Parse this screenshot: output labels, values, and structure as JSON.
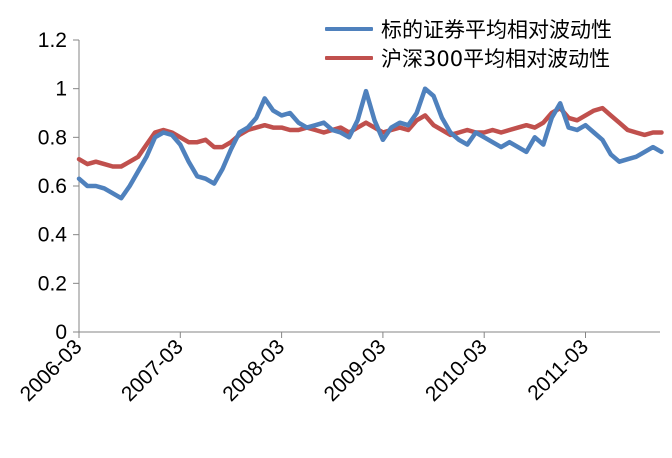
{
  "chart_data": {
    "type": "line",
    "title": "",
    "xlabel": "",
    "ylabel": "",
    "ylim": [
      0,
      1.2
    ],
    "yticks": [
      "0",
      "0.2",
      "0.4",
      "0.6",
      "0.8",
      "1",
      "1.2"
    ],
    "xlim": [
      "2006-03",
      "2011-12"
    ],
    "xticks": [
      "2006-03",
      "2007-03",
      "2008-03",
      "2009-03",
      "2010-03",
      "2011-03"
    ],
    "grid": false,
    "legend_position": "top-right",
    "series": [
      {
        "name": "标的证券平均相对波动性",
        "color": "#4F81BD",
        "points": [
          [
            "2006-03",
            0.63
          ],
          [
            "2006-04",
            0.6
          ],
          [
            "2006-05",
            0.6
          ],
          [
            "2006-06",
            0.59
          ],
          [
            "2006-07",
            0.57
          ],
          [
            "2006-08",
            0.55
          ],
          [
            "2006-09",
            0.6
          ],
          [
            "2006-10",
            0.66
          ],
          [
            "2006-11",
            0.72
          ],
          [
            "2006-12",
            0.8
          ],
          [
            "2007-01",
            0.82
          ],
          [
            "2007-02",
            0.81
          ],
          [
            "2007-03",
            0.77
          ],
          [
            "2007-04",
            0.7
          ],
          [
            "2007-05",
            0.64
          ],
          [
            "2007-06",
            0.63
          ],
          [
            "2007-07",
            0.61
          ],
          [
            "2007-08",
            0.67
          ],
          [
            "2007-09",
            0.75
          ],
          [
            "2007-10",
            0.82
          ],
          [
            "2007-11",
            0.84
          ],
          [
            "2007-12",
            0.88
          ],
          [
            "2008-01",
            0.96
          ],
          [
            "2008-02",
            0.91
          ],
          [
            "2008-03",
            0.89
          ],
          [
            "2008-04",
            0.9
          ],
          [
            "2008-05",
            0.86
          ],
          [
            "2008-06",
            0.84
          ],
          [
            "2008-07",
            0.85
          ],
          [
            "2008-08",
            0.86
          ],
          [
            "2008-09",
            0.83
          ],
          [
            "2008-10",
            0.82
          ],
          [
            "2008-11",
            0.8
          ],
          [
            "2008-12",
            0.87
          ],
          [
            "2009-01",
            0.99
          ],
          [
            "2009-02",
            0.87
          ],
          [
            "2009-03",
            0.79
          ],
          [
            "2009-04",
            0.84
          ],
          [
            "2009-05",
            0.86
          ],
          [
            "2009-06",
            0.85
          ],
          [
            "2009-07",
            0.9
          ],
          [
            "2009-08",
            1.0
          ],
          [
            "2009-09",
            0.97
          ],
          [
            "2009-10",
            0.88
          ],
          [
            "2009-11",
            0.82
          ],
          [
            "2009-12",
            0.79
          ],
          [
            "2010-01",
            0.77
          ],
          [
            "2010-02",
            0.82
          ],
          [
            "2010-03",
            0.8
          ],
          [
            "2010-04",
            0.78
          ],
          [
            "2010-05",
            0.76
          ],
          [
            "2010-06",
            0.78
          ],
          [
            "2010-07",
            0.76
          ],
          [
            "2010-08",
            0.74
          ],
          [
            "2010-09",
            0.8
          ],
          [
            "2010-10",
            0.77
          ],
          [
            "2010-11",
            0.88
          ],
          [
            "2010-12",
            0.94
          ],
          [
            "2011-01",
            0.84
          ],
          [
            "2011-02",
            0.83
          ],
          [
            "2011-03",
            0.85
          ],
          [
            "2011-04",
            0.82
          ],
          [
            "2011-05",
            0.79
          ],
          [
            "2011-06",
            0.73
          ],
          [
            "2011-07",
            0.7
          ],
          [
            "2011-08",
            0.71
          ],
          [
            "2011-09",
            0.72
          ],
          [
            "2011-10",
            0.74
          ],
          [
            "2011-11",
            0.76
          ],
          [
            "2011-12",
            0.74
          ]
        ]
      },
      {
        "name": "沪深300平均相对波动性",
        "color": "#C0504D",
        "points": [
          [
            "2006-03",
            0.71
          ],
          [
            "2006-04",
            0.69
          ],
          [
            "2006-05",
            0.7
          ],
          [
            "2006-06",
            0.69
          ],
          [
            "2006-07",
            0.68
          ],
          [
            "2006-08",
            0.68
          ],
          [
            "2006-09",
            0.7
          ],
          [
            "2006-10",
            0.72
          ],
          [
            "2006-11",
            0.77
          ],
          [
            "2006-12",
            0.82
          ],
          [
            "2007-01",
            0.83
          ],
          [
            "2007-02",
            0.82
          ],
          [
            "2007-03",
            0.8
          ],
          [
            "2007-04",
            0.78
          ],
          [
            "2007-05",
            0.78
          ],
          [
            "2007-06",
            0.79
          ],
          [
            "2007-07",
            0.76
          ],
          [
            "2007-08",
            0.76
          ],
          [
            "2007-09",
            0.78
          ],
          [
            "2007-10",
            0.81
          ],
          [
            "2007-11",
            0.83
          ],
          [
            "2007-12",
            0.84
          ],
          [
            "2008-01",
            0.85
          ],
          [
            "2008-02",
            0.84
          ],
          [
            "2008-03",
            0.84
          ],
          [
            "2008-04",
            0.83
          ],
          [
            "2008-05",
            0.83
          ],
          [
            "2008-06",
            0.84
          ],
          [
            "2008-07",
            0.83
          ],
          [
            "2008-08",
            0.82
          ],
          [
            "2008-09",
            0.83
          ],
          [
            "2008-10",
            0.84
          ],
          [
            "2008-11",
            0.82
          ],
          [
            "2008-12",
            0.84
          ],
          [
            "2009-01",
            0.86
          ],
          [
            "2009-02",
            0.84
          ],
          [
            "2009-03",
            0.82
          ],
          [
            "2009-04",
            0.83
          ],
          [
            "2009-05",
            0.84
          ],
          [
            "2009-06",
            0.83
          ],
          [
            "2009-07",
            0.87
          ],
          [
            "2009-08",
            0.89
          ],
          [
            "2009-09",
            0.85
          ],
          [
            "2009-10",
            0.83
          ],
          [
            "2009-11",
            0.81
          ],
          [
            "2009-12",
            0.82
          ],
          [
            "2010-01",
            0.83
          ],
          [
            "2010-02",
            0.82
          ],
          [
            "2010-03",
            0.82
          ],
          [
            "2010-04",
            0.83
          ],
          [
            "2010-05",
            0.82
          ],
          [
            "2010-06",
            0.83
          ],
          [
            "2010-07",
            0.84
          ],
          [
            "2010-08",
            0.85
          ],
          [
            "2010-09",
            0.84
          ],
          [
            "2010-10",
            0.86
          ],
          [
            "2010-11",
            0.9
          ],
          [
            "2010-12",
            0.92
          ],
          [
            "2011-01",
            0.88
          ],
          [
            "2011-02",
            0.87
          ],
          [
            "2011-03",
            0.89
          ],
          [
            "2011-04",
            0.91
          ],
          [
            "2011-05",
            0.92
          ],
          [
            "2011-06",
            0.89
          ],
          [
            "2011-07",
            0.86
          ],
          [
            "2011-08",
            0.83
          ],
          [
            "2011-09",
            0.82
          ],
          [
            "2011-10",
            0.81
          ],
          [
            "2011-11",
            0.82
          ],
          [
            "2011-12",
            0.82
          ]
        ]
      }
    ]
  }
}
